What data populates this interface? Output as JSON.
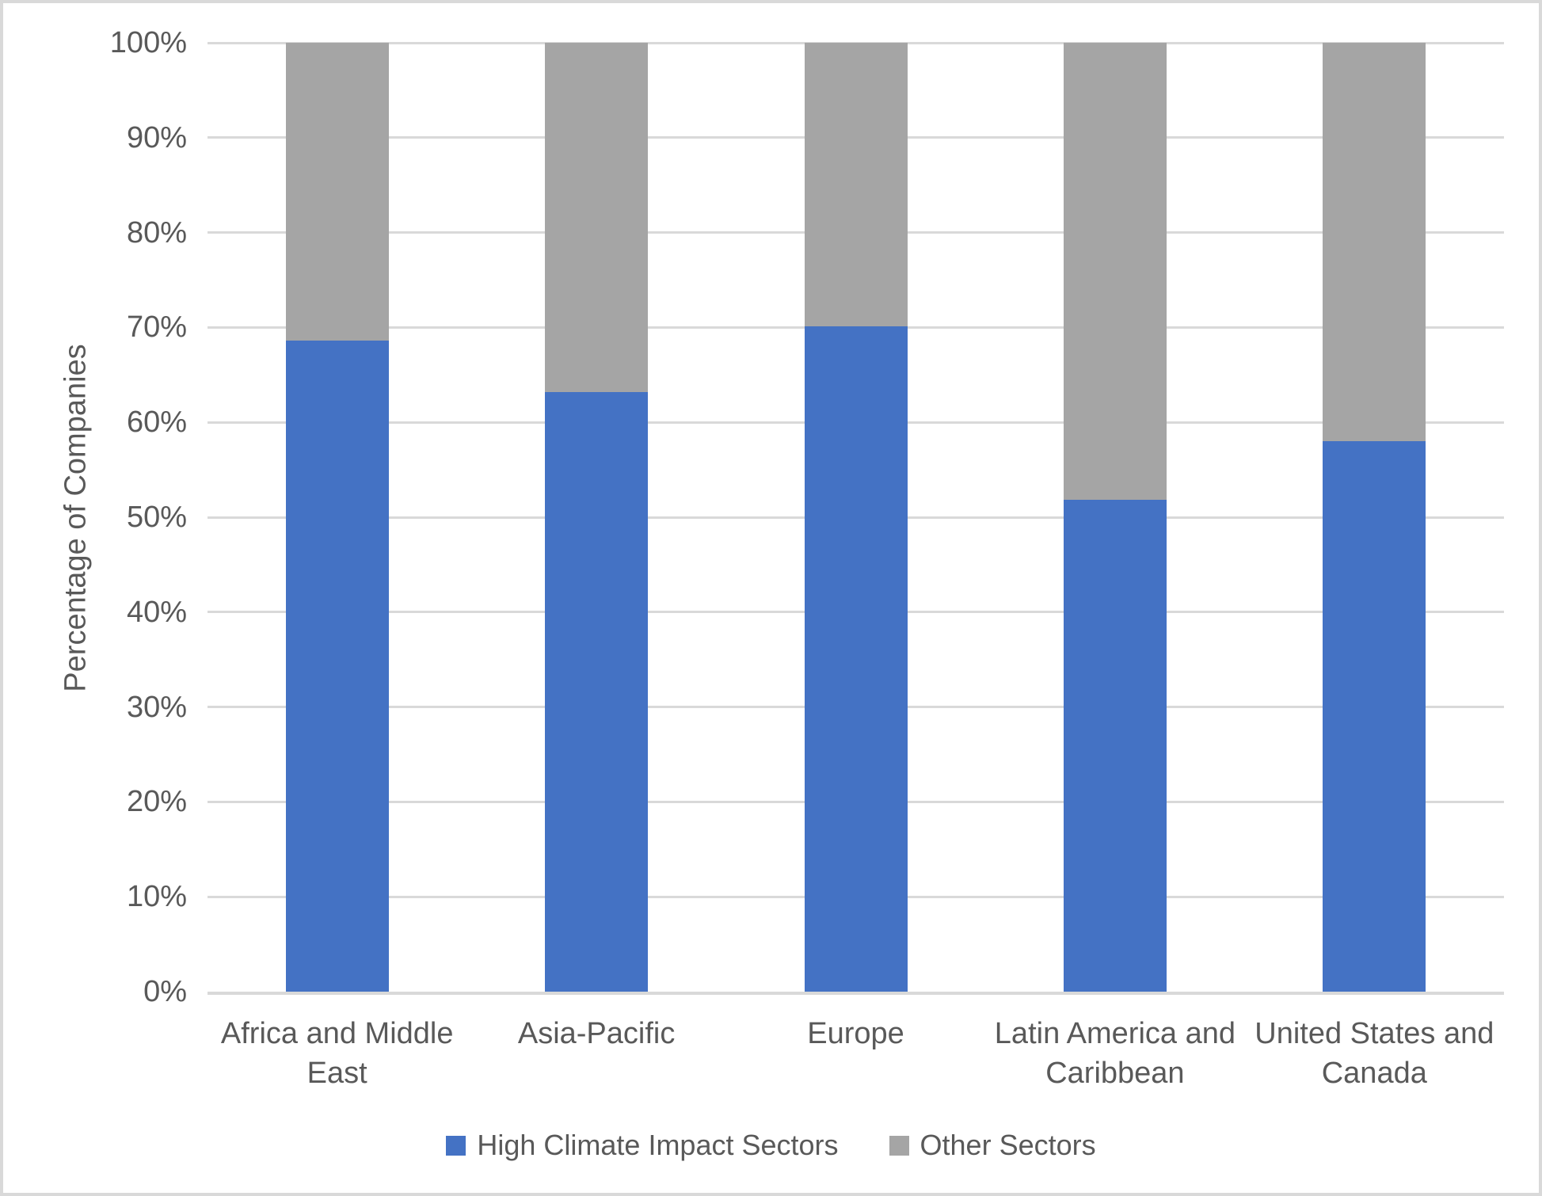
{
  "chart_data": {
    "type": "bar",
    "subtype": "stacked-100-percent-column",
    "title": "",
    "xlabel": "",
    "ylabel": "Percentage of Companies",
    "ylim": [
      0,
      100
    ],
    "grid": true,
    "legend_position": "bottom",
    "y_ticks": [
      "0%",
      "10%",
      "20%",
      "30%",
      "40%",
      "50%",
      "60%",
      "70%",
      "80%",
      "90%",
      "100%"
    ],
    "y_tick_values": [
      0,
      10,
      20,
      30,
      40,
      50,
      60,
      70,
      80,
      90,
      100
    ],
    "categories": [
      {
        "name": "Africa and Middle East",
        "lines": [
          "Africa and Middle",
          "East"
        ]
      },
      {
        "name": "Asia-Pacific",
        "lines": [
          "Asia-Pacific"
        ]
      },
      {
        "name": "Europe",
        "lines": [
          "Europe"
        ]
      },
      {
        "name": "Latin America and Caribbean",
        "lines": [
          "Latin America and",
          "Caribbean"
        ]
      },
      {
        "name": "United States and Canada",
        "lines": [
          "United States and",
          "Canada"
        ]
      }
    ],
    "series": [
      {
        "name": "High Climate Impact Sectors",
        "color": "#4472C4",
        "values": [
          68.6,
          63.2,
          70.1,
          51.8,
          58.0
        ]
      },
      {
        "name": "Other Sectors",
        "color": "#A5A5A5",
        "values": [
          31.4,
          36.8,
          29.9,
          48.2,
          42.0
        ]
      }
    ],
    "colors": {
      "gridline": "#D9D9D9",
      "axis_line": "#D9D9D9",
      "text": "#595959",
      "background": "#FFFFFF",
      "border": "#D9D9D9"
    }
  }
}
